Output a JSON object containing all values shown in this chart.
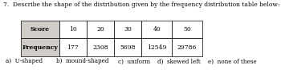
{
  "question_number": "7.",
  "question_text": "Describe the shape of the distribution given by the frequency distribution table below:",
  "table_col_headers": [
    "Score",
    "10",
    "20",
    "30",
    "40",
    "50"
  ],
  "table_row_label": "Frequency",
  "table_values": [
    "177",
    "2308",
    "5698",
    "12549",
    "29786"
  ],
  "options": [
    "a)  U-shaped",
    "b)  mound-shaped",
    "c)  uniform",
    "d)  skewed left",
    "e)  none of these"
  ],
  "font_size": 5.5,
  "bg_color": "#ffffff",
  "table_header_bg": "#d0ccc8",
  "table_border_color": "#000000"
}
